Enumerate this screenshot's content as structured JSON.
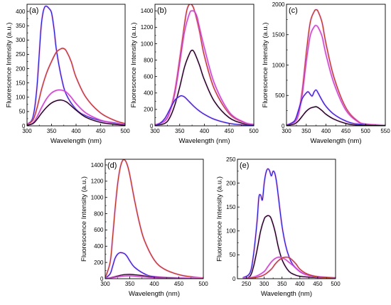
{
  "colors": {
    "black": "#000000",
    "blue": "#2222cc",
    "brown": "#b03818",
    "magenta": "#c040c0",
    "halo": "#ff7aff"
  },
  "chart_data": [
    {
      "panel": "(a)",
      "type": "line",
      "xlabel": "Wavelength (nm)",
      "ylabel": "Fluorescence Intensity (a.u.)",
      "xlim": [
        300,
        500
      ],
      "ylim": [
        0,
        425
      ],
      "xticks": [
        300,
        350,
        400,
        450,
        500
      ],
      "yticks": [
        0,
        50,
        100,
        150,
        200,
        250,
        300,
        350,
        400
      ],
      "series": [
        {
          "color": "blue",
          "x": [
            300,
            312,
            320,
            328,
            332,
            336,
            340,
            345,
            350,
            355,
            360,
            370,
            380,
            400,
            420,
            450,
            480,
            500
          ],
          "y": [
            5,
            30,
            130,
            330,
            390,
            415,
            418,
            410,
            395,
            340,
            265,
            170,
            110,
            58,
            35,
            18,
            10,
            5
          ]
        },
        {
          "color": "brown",
          "x": [
            300,
            312,
            320,
            330,
            340,
            350,
            360,
            370,
            375,
            380,
            390,
            400,
            420,
            450,
            480,
            500
          ],
          "y": [
            5,
            20,
            60,
            130,
            185,
            225,
            258,
            270,
            270,
            262,
            225,
            170,
            100,
            45,
            18,
            8
          ]
        },
        {
          "color": "magenta",
          "x": [
            300,
            312,
            320,
            330,
            340,
            350,
            360,
            370,
            380,
            390,
            400,
            420,
            450,
            480,
            500
          ],
          "y": [
            3,
            10,
            30,
            65,
            95,
            115,
            124,
            125,
            118,
            100,
            78,
            45,
            20,
            8,
            4
          ]
        },
        {
          "color": "black",
          "x": [
            300,
            312,
            320,
            330,
            340,
            350,
            360,
            370,
            380,
            390,
            400,
            420,
            450,
            480,
            500
          ],
          "y": [
            2,
            8,
            22,
            45,
            65,
            80,
            88,
            90,
            84,
            70,
            55,
            30,
            12,
            5,
            2
          ]
        }
      ]
    },
    {
      "panel": "(b)",
      "type": "line",
      "xlabel": "Wavelength (nm)",
      "ylabel": "Fluorescence Intensity (a.u.)",
      "xlim": [
        300,
        500
      ],
      "ylim": [
        0,
        1480
      ],
      "xticks": [
        300,
        350,
        400,
        450,
        500
      ],
      "yticks": [
        0,
        200,
        400,
        600,
        800,
        1000,
        1200,
        1400
      ],
      "series": [
        {
          "color": "brown",
          "x": [
            300,
            320,
            330,
            340,
            350,
            360,
            365,
            370,
            375,
            380,
            390,
            400,
            420,
            450,
            480,
            500
          ],
          "y": [
            10,
            60,
            180,
            420,
            820,
            1250,
            1420,
            1480,
            1470,
            1400,
            1150,
            850,
            450,
            150,
            40,
            15
          ]
        },
        {
          "color": "magenta",
          "x": [
            300,
            320,
            330,
            340,
            350,
            360,
            370,
            375,
            380,
            385,
            390,
            400,
            420,
            450,
            480,
            500
          ],
          "y": [
            10,
            60,
            170,
            390,
            760,
            1150,
            1370,
            1400,
            1390,
            1330,
            1200,
            950,
            520,
            170,
            45,
            15
          ]
        },
        {
          "color": "black",
          "x": [
            300,
            320,
            330,
            340,
            350,
            360,
            370,
            375,
            380,
            390,
            400,
            420,
            450,
            480,
            500
          ],
          "y": [
            5,
            30,
            100,
            250,
            470,
            720,
            880,
            920,
            890,
            740,
            560,
            300,
            100,
            25,
            8
          ]
        },
        {
          "color": "blue",
          "x": [
            300,
            310,
            320,
            330,
            340,
            350,
            355,
            360,
            370,
            380,
            390,
            400,
            420,
            450,
            480,
            500
          ],
          "y": [
            5,
            30,
            90,
            200,
            310,
            360,
            365,
            350,
            290,
            230,
            180,
            140,
            80,
            30,
            10,
            5
          ]
        }
      ]
    },
    {
      "panel": "(c)",
      "type": "line",
      "xlabel": "Wavelength (nm)",
      "ylabel": "Fluorescence Intensity (a.u.)",
      "xlim": [
        300,
        550
      ],
      "ylim": [
        0,
        2000
      ],
      "xticks": [
        300,
        350,
        400,
        450,
        500,
        550
      ],
      "yticks": [
        0,
        500,
        1000,
        1500,
        2000
      ],
      "series": [
        {
          "color": "brown",
          "x": [
            300,
            320,
            330,
            340,
            350,
            360,
            370,
            375,
            380,
            390,
            400,
            420,
            450,
            480,
            500,
            550
          ],
          "y": [
            10,
            60,
            200,
            600,
            1200,
            1700,
            1880,
            1910,
            1880,
            1700,
            1350,
            800,
            300,
            80,
            30,
            5
          ]
        },
        {
          "color": "magenta",
          "x": [
            300,
            320,
            330,
            340,
            350,
            360,
            370,
            375,
            380,
            390,
            400,
            420,
            450,
            480,
            500,
            550
          ],
          "y": [
            10,
            60,
            180,
            520,
            1050,
            1480,
            1630,
            1650,
            1620,
            1470,
            1170,
            700,
            260,
            70,
            25,
            5
          ]
        },
        {
          "color": "blue",
          "x": [
            300,
            320,
            330,
            340,
            350,
            355,
            360,
            365,
            370,
            375,
            380,
            390,
            400,
            420,
            450,
            480,
            550
          ],
          "y": [
            10,
            80,
            250,
            450,
            540,
            560,
            520,
            490,
            560,
            590,
            540,
            420,
            320,
            190,
            80,
            30,
            5
          ]
        },
        {
          "color": "black",
          "x": [
            300,
            320,
            330,
            340,
            350,
            360,
            370,
            375,
            380,
            390,
            400,
            420,
            450,
            480,
            550
          ],
          "y": [
            5,
            30,
            80,
            160,
            240,
            290,
            310,
            315,
            300,
            250,
            190,
            110,
            40,
            12,
            3
          ]
        }
      ]
    },
    {
      "panel": "(d)",
      "type": "line",
      "xlabel": "Wavelength (nm)",
      "ylabel": "Fluorescence Intensity (a.u.)",
      "xlim": [
        300,
        500
      ],
      "ylim": [
        0,
        1470
      ],
      "xticks": [
        300,
        350,
        400,
        450,
        500
      ],
      "yticks": [
        0,
        200,
        400,
        600,
        800,
        1000,
        1200,
        1400
      ],
      "series": [
        {
          "color": "brown",
          "x": [
            300,
            310,
            315,
            320,
            325,
            330,
            335,
            340,
            345,
            350,
            360,
            370,
            380,
            400,
            420,
            450,
            480,
            500
          ],
          "y": [
            10,
            200,
            500,
            850,
            1150,
            1350,
            1450,
            1460,
            1400,
            1280,
            960,
            680,
            470,
            230,
            120,
            50,
            20,
            10
          ]
        },
        {
          "color": "blue",
          "x": [
            300,
            310,
            315,
            320,
            325,
            330,
            335,
            340,
            345,
            350,
            360,
            380,
            400,
            450,
            500
          ],
          "y": [
            5,
            60,
            150,
            250,
            300,
            320,
            318,
            305,
            270,
            220,
            140,
            60,
            25,
            8,
            3
          ]
        },
        {
          "color": "black",
          "x": [
            300,
            310,
            320,
            330,
            340,
            350,
            360,
            380,
            400,
            450,
            500
          ],
          "y": [
            2,
            10,
            25,
            40,
            50,
            52,
            48,
            35,
            20,
            6,
            2
          ]
        },
        {
          "color": "magenta",
          "x": [
            300,
            310,
            320,
            330,
            340,
            350,
            360,
            380,
            400,
            450,
            500
          ],
          "y": [
            2,
            8,
            18,
            28,
            34,
            35,
            32,
            22,
            12,
            4,
            1
          ]
        }
      ]
    },
    {
      "panel": "(e)",
      "type": "line",
      "xlabel": "Wavelength (nm)",
      "ylabel": "Fluorescence Intensity (a.u.)",
      "xlim": [
        225,
        500
      ],
      "ylim": [
        0,
        250
      ],
      "xticks": [
        250,
        300,
        350,
        400,
        450,
        500
      ],
      "yticks": [
        0,
        50,
        100,
        150,
        200,
        250
      ],
      "series": [
        {
          "color": "blue",
          "x": [
            240,
            260,
            270,
            280,
            285,
            290,
            295,
            300,
            305,
            310,
            315,
            320,
            325,
            330,
            335,
            340,
            350,
            360,
            370,
            380,
            400,
            420,
            450,
            500
          ],
          "y": [
            2,
            12,
            50,
            120,
            170,
            175,
            165,
            200,
            222,
            230,
            226,
            215,
            225,
            220,
            200,
            170,
            110,
            70,
            45,
            30,
            15,
            8,
            4,
            2
          ]
        },
        {
          "color": "black",
          "x": [
            240,
            260,
            270,
            280,
            290,
            300,
            305,
            310,
            315,
            320,
            330,
            340,
            350,
            360,
            370,
            380,
            400,
            450,
            500
          ],
          "y": [
            0,
            5,
            25,
            60,
            100,
            125,
            130,
            132,
            131,
            125,
            100,
            65,
            40,
            25,
            15,
            10,
            5,
            2,
            0
          ]
        },
        {
          "color": "magenta",
          "x": [
            240,
            260,
            280,
            300,
            310,
            320,
            330,
            340,
            350,
            360,
            370,
            380,
            400,
            420,
            450,
            500
          ],
          "y": [
            0,
            2,
            6,
            15,
            25,
            35,
            42,
            45,
            44,
            40,
            34,
            28,
            15,
            8,
            3,
            1
          ]
        },
        {
          "color": "brown",
          "x": [
            240,
            260,
            280,
            300,
            320,
            330,
            340,
            350,
            360,
            370,
            380,
            390,
            400,
            420,
            450,
            500
          ],
          "y": [
            0,
            1,
            3,
            8,
            20,
            30,
            38,
            43,
            45,
            44,
            38,
            30,
            20,
            10,
            4,
            1
          ]
        }
      ]
    }
  ]
}
